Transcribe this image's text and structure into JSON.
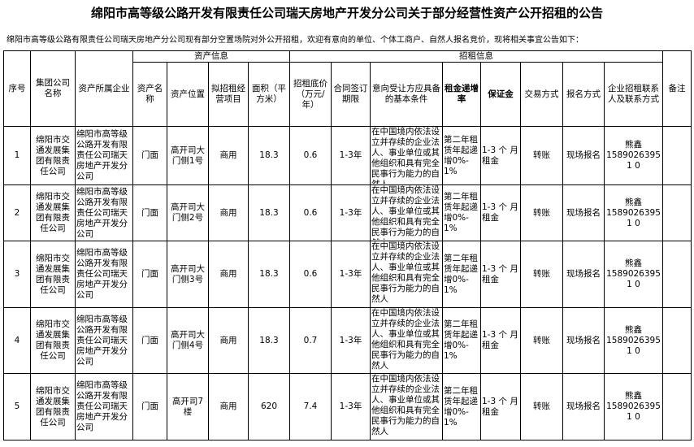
{
  "title": "绵阳市高等级公路开发有限责任公司瑞天房地产开发分公司关于部分经营性资产公开招租的公告",
  "intro": "绵阳市高等级公路有限责任公司瑞天房地产分公司现有部分空置场院对外公开招租，欢迎有意向的单位、个体工商户、自然人报名竞价，现将相关事宜公告如下：",
  "groups": {
    "asset": "资产信息",
    "rent": "招租信息"
  },
  "headers": [
    "序号",
    "集团公司名称",
    "资产所属企业",
    "资产名称",
    "资产位置",
    "拟招租经营项目",
    "面积（平方米）",
    "招租底价（万元/年）",
    "合同签订期限",
    "意向受让方应具备的基本条件",
    "租金递增率",
    "保证金",
    "交易方式",
    "报名方式",
    "企业招租联系人及联系方式",
    "备注"
  ],
  "rows": [
    {
      "no": "1",
      "group": "绵阳市交通发展集团有限责任公司",
      "owner": "绵阳市高等级公路开发有限责任公司瑞天房地产开发分公司",
      "name": "门面",
      "loc": "高开司大门侧1号",
      "use": "商用",
      "area": "18.3",
      "price": "0.6",
      "term": "1-3年",
      "cond": "在中国境内依法设立并存续的企业法人、事业单位或其他组织和具有完全民事行为能力的自然人",
      "incr": "第二年租赁年起递增0%-1%",
      "deposit": "1-3 个 月租金",
      "trade": "转账",
      "signup": "现场报名",
      "contact_name": "熊鑫",
      "contact_phone": "15890263951 0",
      "note": ""
    },
    {
      "no": "2",
      "group": "绵阳市交通发展集团有限责任公司",
      "owner": "绵阳市高等级公路开发有限责任公司瑞天房地产开发分公司",
      "name": "门面",
      "loc": "高开司大门侧2号",
      "use": "商用",
      "area": "18.3",
      "price": "0.6",
      "term": "1-3年",
      "cond": "在中国境内依法设立并存续的企业法人、事业单位或其他组织和具有完全民事行为能力的自然人",
      "incr": "第二年租赁年起递增0%-1%",
      "deposit": "1-3 个 月租金",
      "trade": "转账",
      "signup": "现场报名",
      "contact_name": "熊鑫",
      "contact_phone": "15890263951 0",
      "note": ""
    },
    {
      "no": "3",
      "group": "绵阳市交通发展集团有限责任公司",
      "owner": "绵阳市高等级公路开发有限责任公司瑞天房地产开发分公司",
      "name": "门面",
      "loc": "高开司大门侧3号",
      "use": "商用",
      "area": "18.3",
      "price": "0.6",
      "term": "1-3年",
      "cond": "在中国境内依法设立并存续的企业法人、事业单位或其他组织和具有完全民事行为能力的自然人",
      "incr": "第二年租赁年起递增0%-1%",
      "deposit": "1-3 个 月租金",
      "trade": "转账",
      "signup": "现场报名",
      "contact_name": "熊鑫",
      "contact_phone": "15890263951 0",
      "note": ""
    },
    {
      "no": "4",
      "group": "绵阳市交通发展集团有限责任公司",
      "owner": "绵阳市高等级公路开发有限责任公司瑞天房地产开发分公司",
      "name": "门面",
      "loc": "高开司大门侧4号",
      "use": "商用",
      "area": "18.3",
      "price": "0.7",
      "term": "1-3年",
      "cond": "在中国境内依法设立并存续的企业法人、事业单位或其他组织和具有完全民事行为能力的自然人",
      "incr": "第二年租赁年起递增0%-1%",
      "deposit": "1-3 个 月租金",
      "trade": "转账",
      "signup": "现场报名",
      "contact_name": "熊鑫",
      "contact_phone": "15890263951 0",
      "note": ""
    },
    {
      "no": "5",
      "group": "绵阳市交通发展集团有限责任公司",
      "owner": "绵阳市高等级公路开发有限责任公司瑞天房地产开发分公司",
      "name": "门面",
      "loc": "高开司7楼",
      "use": "商用",
      "area": "620",
      "price": "7.4",
      "term": "1-3年",
      "cond": "在中国境内依法设立并存续的企业法人、事业单位或其他组织和具有完全民事行为能力的自然人",
      "incr": "第二年租赁年起递增0%-1%",
      "deposit": "1-3 个 月租金",
      "trade": "转账",
      "signup": "现场报名",
      "contact_name": "熊鑫",
      "contact_phone": "15890263951 0",
      "note": ""
    }
  ]
}
